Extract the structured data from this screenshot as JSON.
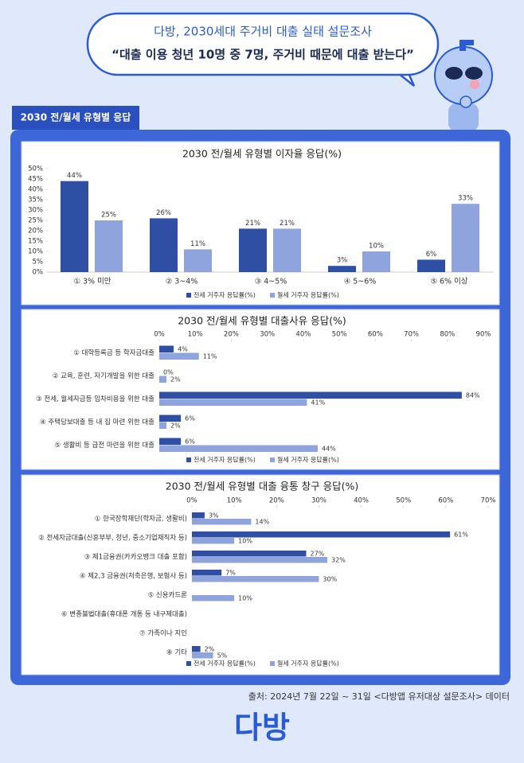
{
  "header": {
    "subtitle": "다방, 2030세대 주거비 대출 실태 설문조사",
    "title": "“대출 이용 청년 10명 중 7명, 주거비 때문에 대출 받는다”"
  },
  "section_label": "2030 전/월세 유형별 응답",
  "chart_data": [
    {
      "type": "bar",
      "title": "2030 전/월세 유형별 이자율 응답(%)",
      "categories": [
        "① 3% 미만",
        "② 3~4%",
        "③ 4~5%",
        "④ 5~6%",
        "⑤ 6% 이상"
      ],
      "series": [
        {
          "name": "전세 거주자 응답률(%)",
          "color": "#2e4fa3",
          "values": [
            44,
            26,
            21,
            3,
            6
          ],
          "value_labels": [
            "44%",
            "26%",
            "21%",
            "3%",
            "6%"
          ]
        },
        {
          "name": "월세 거주자 응답률(%)",
          "color": "#8fa3dc",
          "values": [
            25,
            11,
            21,
            10,
            33
          ],
          "value_labels": [
            "25%",
            "11%",
            "21%",
            "10%",
            "33%"
          ]
        }
      ],
      "ylim": [
        0,
        50
      ],
      "yticks": [
        {
          "value": 0,
          "label": "0%"
        },
        {
          "value": 5,
          "label": "5%"
        },
        {
          "value": 10,
          "label": "10%"
        },
        {
          "value": 15,
          "label": "15%"
        },
        {
          "value": 20,
          "label": "20%"
        },
        {
          "value": 25,
          "label": "25%"
        },
        {
          "value": 30,
          "label": "30%"
        },
        {
          "value": 35,
          "label": "35%"
        },
        {
          "value": 40,
          "label": "40%"
        },
        {
          "value": 45,
          "label": "45%"
        },
        {
          "value": 50,
          "label": "50%"
        }
      ]
    },
    {
      "type": "barh",
      "title": "2030 전/월세 유형별 대출사유 응답(%)",
      "categories": [
        "① 대학등록금 등 학자금대출",
        "② 교육, 훈련, 자기개발을 위한 대출",
        "③ 전세, 월세자금등 임차비용을 위한 대출",
        "④ 주택담보대출 등 내 집 마련 위한 대출",
        "⑤ 생활비 등 급전 마련을 위한 대출"
      ],
      "series": [
        {
          "name": "전세 거주자 응답률(%)",
          "color": "#2e4fa3",
          "values": [
            4,
            0,
            84,
            6,
            6
          ],
          "value_labels": [
            "4%",
            "0%",
            "84%",
            "6%",
            "6%"
          ]
        },
        {
          "name": "월세 거주자 응답률(%)",
          "color": "#8fa3dc",
          "values": [
            11,
            2,
            41,
            2,
            44
          ],
          "value_labels": [
            "11%",
            "2%",
            "41%",
            "2%",
            "44%"
          ]
        }
      ],
      "xlim": [
        0,
        90
      ],
      "xticks": [
        {
          "value": 0,
          "label": "0%"
        },
        {
          "value": 10,
          "label": "10%"
        },
        {
          "value": 20,
          "label": "20%"
        },
        {
          "value": 30,
          "label": "30%"
        },
        {
          "value": 40,
          "label": "40%"
        },
        {
          "value": 50,
          "label": "50%"
        },
        {
          "value": 60,
          "label": "60%"
        },
        {
          "value": 70,
          "label": "70%"
        },
        {
          "value": 80,
          "label": "80%"
        },
        {
          "value": 90,
          "label": "90%"
        }
      ]
    },
    {
      "type": "barh",
      "title": "2030 전/월세 유형별 대출 융통 창구 응답(%)",
      "categories": [
        "① 한국장학재단(학자금, 생활비)",
        "② 전세자금대출(신혼부부, 청년, 중소기업재직자 등)",
        "③ 제1금융권(카카오뱅크 대출 포함)",
        "④ 제2,3 금융권(저축은행, 보험사 등)",
        "⑤ 신용카드론",
        "⑥ 변종불법대출(휴대폰 개통 등 내구제대출)",
        "⑦ 가족이나 지인",
        "⑧ 기타"
      ],
      "series": [
        {
          "name": "전세 거주자 응답률(%)",
          "color": "#2e4fa3",
          "values": [
            3,
            61,
            27,
            7,
            null,
            null,
            null,
            2
          ],
          "value_labels": [
            "3%",
            "61%",
            "27%",
            "7%",
            null,
            null,
            null,
            "2%"
          ]
        },
        {
          "name": "월세 거주자 응답률(%)",
          "color": "#8fa3dc",
          "values": [
            14,
            10,
            32,
            30,
            10,
            null,
            null,
            5
          ],
          "value_labels": [
            "14%",
            "10%",
            "32%",
            "30%",
            "10%",
            null,
            null,
            "5%"
          ]
        }
      ],
      "xlim": [
        0,
        70
      ],
      "xticks": [
        {
          "value": 0,
          "label": "0%"
        },
        {
          "value": 10,
          "label": "10%"
        },
        {
          "value": 20,
          "label": "20%"
        },
        {
          "value": 30,
          "label": "30%"
        },
        {
          "value": 40,
          "label": "40%"
        },
        {
          "value": 50,
          "label": "50%"
        },
        {
          "value": 60,
          "label": "60%"
        },
        {
          "value": 70,
          "label": "70%"
        }
      ]
    }
  ],
  "source": "출처: 2024년 7월 22일 ~ 31일 <다방앱 유저대상 설문조사> 데이터",
  "logo": "다방"
}
